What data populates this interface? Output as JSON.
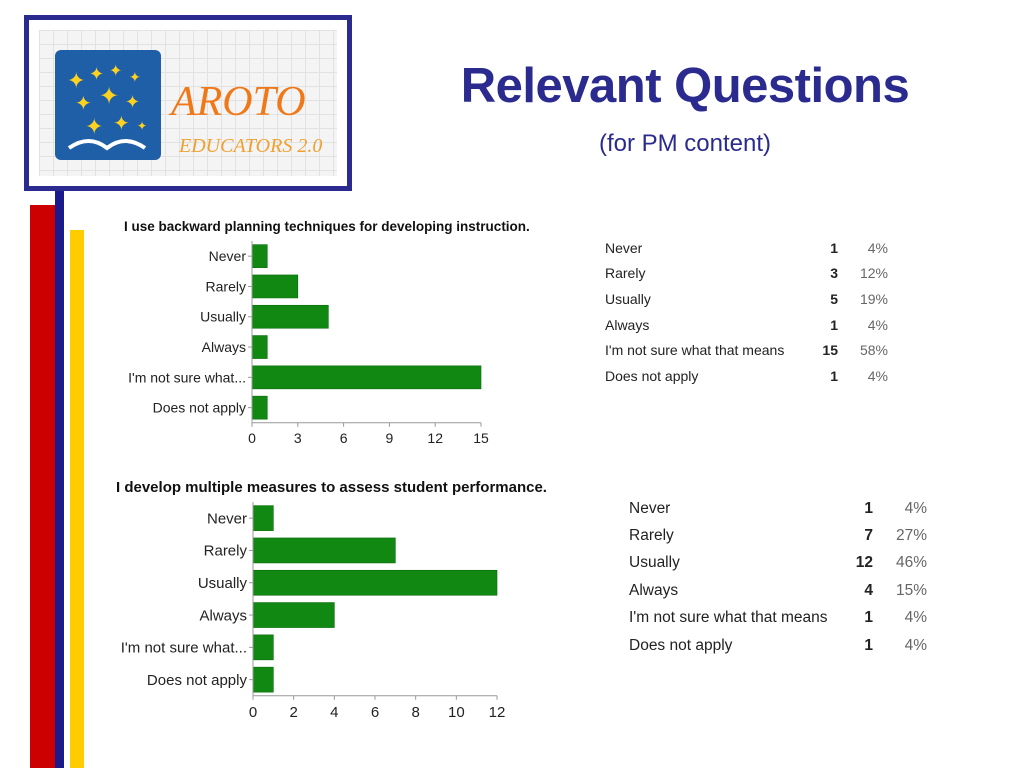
{
  "slide": {
    "title": "Relevant Questions",
    "subtitle": "(for PM content)"
  },
  "logo": {
    "brand_text": "AROTO",
    "tagline_text": "EDUCATORS 2.0",
    "colors": {
      "frame": "#2b2b8f",
      "panel": "#1f5fa8",
      "stars": "#ffd21f",
      "text": "#f07818"
    }
  },
  "colors": {
    "title": "#2b2b8f",
    "bar": "#118811",
    "stripe_red": "#cc0000",
    "stripe_navy": "#1a1a8c",
    "stripe_yellow": "#ffcc00"
  },
  "chart_data": [
    {
      "type": "bar",
      "orientation": "horizontal",
      "title": "I use backward planning techniques for developing instruction.",
      "categories": [
        "Never",
        "Rarely",
        "Usually",
        "Always",
        "I'm not sure what...",
        "Does not apply"
      ],
      "values": [
        1,
        3,
        5,
        1,
        15,
        1
      ],
      "xticks": [
        0,
        3,
        6,
        9,
        12,
        15
      ],
      "xlim": [
        0,
        15
      ],
      "xlabel": "",
      "ylabel": "",
      "grid": false,
      "legend": "none",
      "table": [
        {
          "label": "Never",
          "count": "1",
          "percent": "4%"
        },
        {
          "label": "Rarely",
          "count": "3",
          "percent": "12%"
        },
        {
          "label": "Usually",
          "count": "5",
          "percent": "19%"
        },
        {
          "label": "Always",
          "count": "1",
          "percent": "4%"
        },
        {
          "label": "I'm not sure what that means",
          "count": "15",
          "percent": "58%"
        },
        {
          "label": "Does not apply",
          "count": "1",
          "percent": "4%"
        }
      ]
    },
    {
      "type": "bar",
      "orientation": "horizontal",
      "title": "I develop multiple measures to assess student performance.",
      "categories": [
        "Never",
        "Rarely",
        "Usually",
        "Always",
        "I'm not sure what...",
        "Does not apply"
      ],
      "values": [
        1,
        7,
        12,
        4,
        1,
        1
      ],
      "xticks": [
        0,
        2,
        4,
        6,
        8,
        10,
        12
      ],
      "xlim": [
        0,
        12
      ],
      "xlabel": "",
      "ylabel": "",
      "grid": false,
      "legend": "none",
      "table": [
        {
          "label": "Never",
          "count": "1",
          "percent": "4%"
        },
        {
          "label": "Rarely",
          "count": "7",
          "percent": "27%"
        },
        {
          "label": "Usually",
          "count": "12",
          "percent": "46%"
        },
        {
          "label": "Always",
          "count": "4",
          "percent": "15%"
        },
        {
          "label": "I'm not sure what that means",
          "count": "1",
          "percent": "4%"
        },
        {
          "label": "Does not apply",
          "count": "1",
          "percent": "4%"
        }
      ]
    }
  ]
}
